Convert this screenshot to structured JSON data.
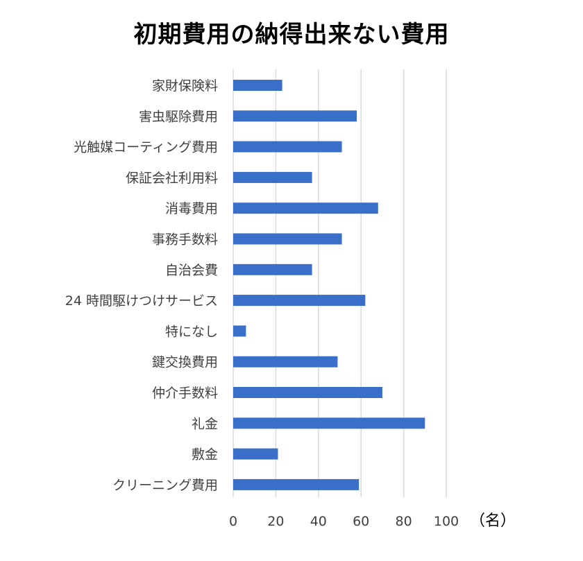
{
  "chart_data": {
    "type": "bar",
    "orientation": "horizontal",
    "title": "初期費用の納得出来ない費用",
    "unit_label": "（名）",
    "categories": [
      "家財保険料",
      "害虫駆除費用",
      "光触媒コーティング費用",
      "保証会社利用料",
      "消毒費用",
      "事務手数料",
      "自治会費",
      "24 時間駆けつけサービス",
      "特になし",
      "鍵交換費用",
      "仲介手数料",
      "礼金",
      "敷金",
      "クリーニング費用"
    ],
    "values": [
      23,
      58,
      51,
      37,
      68,
      51,
      37,
      62,
      6,
      49,
      70,
      90,
      21,
      59
    ],
    "xlim": [
      0,
      100
    ],
    "xticks": [
      "0",
      "20",
      "40",
      "60",
      "80",
      "100"
    ],
    "grid": true,
    "bar_color": "#3a6fc9",
    "grid_color": "#d9d9d9"
  }
}
